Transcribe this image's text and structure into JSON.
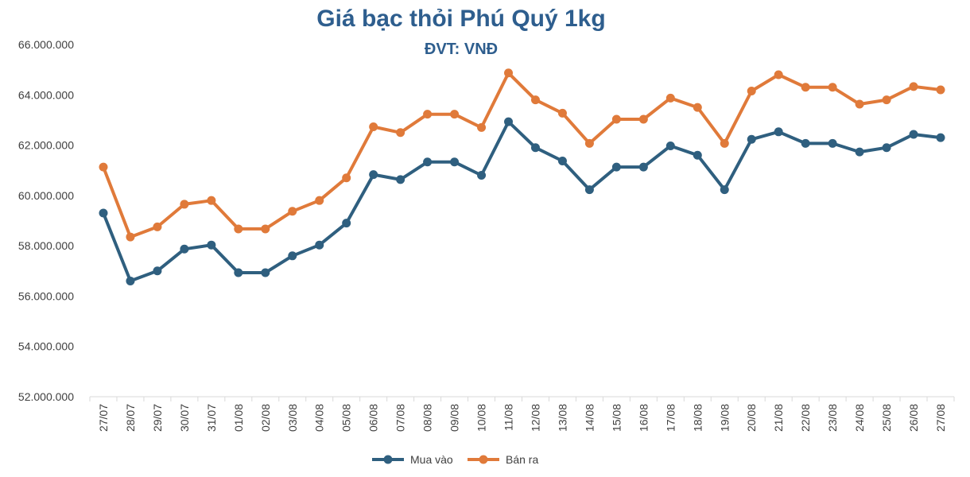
{
  "chart_data": {
    "type": "line",
    "title": "Giá bạc thỏi Phú Quý 1kg",
    "subtitle": "ĐVT: VNĐ",
    "categories": [
      "27/07",
      "28/07",
      "29/07",
      "30/07",
      "31/07",
      "01/08",
      "02/08",
      "03/08",
      "04/08",
      "05/08",
      "06/08",
      "07/08",
      "08/08",
      "09/08",
      "10/08",
      "11/08",
      "12/08",
      "13/08",
      "14/08",
      "15/08",
      "16/08",
      "17/08",
      "18/08",
      "19/08",
      "20/08",
      "21/08",
      "22/08",
      "23/08",
      "24/08",
      "25/08",
      "26/08",
      "27/08"
    ],
    "series": [
      {
        "name": "Mua vào",
        "color": "#2f5f7f",
        "values": [
          59300000,
          56600000,
          57000000,
          57870000,
          58030000,
          56930000,
          56930000,
          57600000,
          58030000,
          58900000,
          60830000,
          60630000,
          61330000,
          61330000,
          60800000,
          62930000,
          61900000,
          61370000,
          60230000,
          61130000,
          61130000,
          61970000,
          61600000,
          60230000,
          62230000,
          62530000,
          62070000,
          62070000,
          61730000,
          61900000,
          62430000,
          62300000
        ]
      },
      {
        "name": "Bán ra",
        "color": "#e07a3a",
        "values": [
          61130000,
          58350000,
          58750000,
          59650000,
          59800000,
          58670000,
          58670000,
          59370000,
          59800000,
          60700000,
          62730000,
          62500000,
          63230000,
          63230000,
          62700000,
          64870000,
          63800000,
          63270000,
          62070000,
          63030000,
          63030000,
          63870000,
          63500000,
          62070000,
          64150000,
          64800000,
          64300000,
          64300000,
          63630000,
          63800000,
          64330000,
          64200000
        ]
      }
    ],
    "y_ticks": [
      "52.000.000",
      "54.000.000",
      "56.000.000",
      "58.000.000",
      "60.000.000",
      "62.000.000",
      "64.000.000",
      "66.000.000"
    ],
    "ylim": [
      52000000,
      66000000
    ],
    "grid": false,
    "legend": "bottom-center"
  }
}
